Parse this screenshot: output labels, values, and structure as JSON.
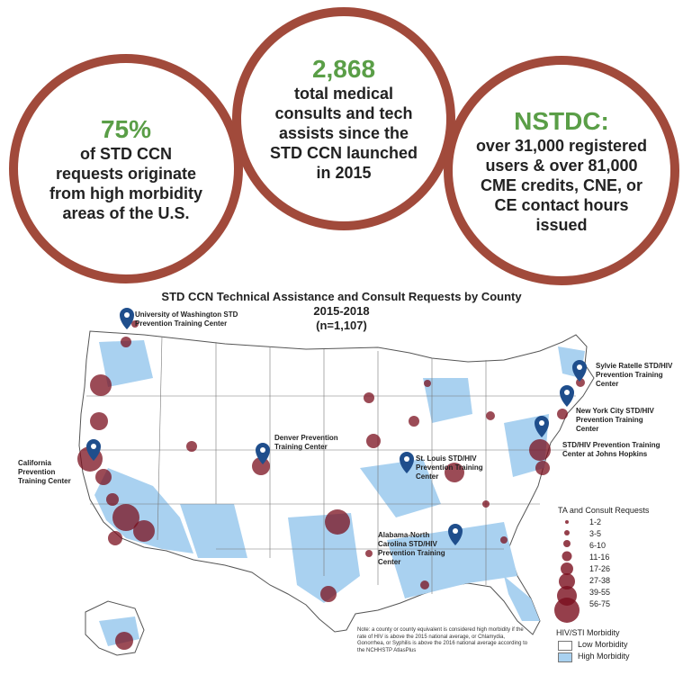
{
  "stats": [
    {
      "value": "75%",
      "text": "of STD CCN requests originate from high morbidity areas of the U.S."
    },
    {
      "value": "2,868",
      "text": "total medical consults and tech assists since the STD CCN launched in 2015"
    },
    {
      "value": "NSTDC:",
      "text": "over 31,000 registered users & over 81,000 CME credits, CNE, or CE contact hours issued"
    }
  ],
  "map": {
    "title": "STD CCN Technical Assistance and Consult Requests by County",
    "years": "2015-2018",
    "n": "(n=1,107)",
    "centers": [
      "University of Washington STD Prevention Training Center",
      "California Prevention Training Center",
      "Denver Prevention Training Center",
      "St. Louis STD/HIV Prevention Training Center",
      "Alabama-North Carolina STD/HIV Prevention Training Center",
      "Sylvie Ratelle STD/HIV Prevention Training Center",
      "New York City STD/HIV Prevention Training Center",
      "STD/HIV Prevention Training Center at Johns Hopkins"
    ],
    "legend_title": "TA and Consult Requests",
    "legend_bins": [
      "1-2",
      "3-5",
      "6-10",
      "11-16",
      "17-26",
      "27-38",
      "39-55",
      "56-75"
    ],
    "morbidity_title": "HIV/STI Morbidity",
    "morbidity_low": "Low Morbidity",
    "morbidity_high": "High Morbidity",
    "note": "Note: a county or county equivalent is considered high morbidity if the rate of HIV is above the 2015 national average, or Chlamydia, Gonorrhea, or Syphilis is above the 2016 national average according to the NCHHSTP AtlasPlus",
    "colors": {
      "bubble": "#7a0f1e",
      "pin": "#1f4e8c",
      "high": "#a9d1f0",
      "border": "#a14a3b",
      "accent": "#5a9e47"
    }
  }
}
